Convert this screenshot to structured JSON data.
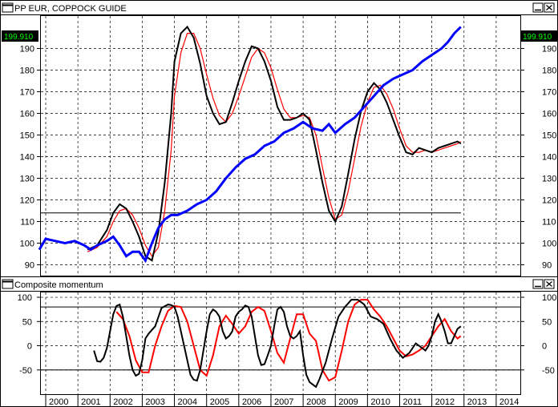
{
  "top_panel": {
    "title": "PP EUR, COPPOCK GUIDE",
    "last_value_label": "199.910"
  },
  "bottom_panel": {
    "title": "Composite momentum"
  },
  "colors": {
    "price": "#0000ff",
    "coppock": "#000000",
    "signal": "#ff0000",
    "momentum": "#000000",
    "momentum_signal": "#ff0000",
    "reference": "#000000",
    "badge_bg": "#000000",
    "badge_text": "#00ff00"
  },
  "chart_data": [
    {
      "type": "line",
      "title": "PP EUR, COPPOCK GUIDE",
      "xlim": [
        1999.85,
        2014.75
      ],
      "ylim": [
        85,
        205
      ],
      "x_ticks": [
        "2000",
        "2001",
        "2002",
        "2003",
        "2004",
        "2005",
        "2006",
        "2007",
        "2008",
        "2009",
        "2010",
        "2011",
        "2012",
        "2013",
        "2014"
      ],
      "y_ticks": [
        90,
        100,
        110,
        120,
        130,
        140,
        150,
        160,
        170,
        180,
        190
      ],
      "grid": true,
      "reference_line": 114,
      "series": [
        {
          "role": "price",
          "x": [
            1999.8,
            2000.0,
            2000.3,
            2000.6,
            2000.9,
            2001.2,
            2001.4,
            2001.6,
            2001.9,
            2002.1,
            2002.3,
            2002.5,
            2002.7,
            2002.9,
            2003.1,
            2003.3,
            2003.5,
            2003.7,
            2003.9,
            2004.1,
            2004.4,
            2004.7,
            2005.0,
            2005.3,
            2005.6,
            2005.9,
            2006.2,
            2006.5,
            2006.8,
            2007.1,
            2007.4,
            2007.7,
            2008.0,
            2008.3,
            2008.6,
            2008.8,
            2009.0,
            2009.3,
            2009.6,
            2009.9,
            2010.2,
            2010.5,
            2010.8,
            2011.1,
            2011.4,
            2011.7,
            2012.0,
            2012.3,
            2012.5,
            2012.7,
            2012.9
          ],
          "values": [
            97,
            102,
            101,
            100,
            101,
            99,
            97,
            99,
            101,
            103,
            99,
            94,
            96,
            96,
            92,
            100,
            107,
            111,
            113,
            113,
            115,
            118,
            120,
            124,
            130,
            135,
            139,
            141,
            145,
            147,
            151,
            153,
            156,
            153,
            152,
            155,
            151,
            155,
            158,
            163,
            168,
            173,
            176,
            178,
            180,
            184,
            187,
            190,
            193,
            197,
            200
          ]
        },
        {
          "role": "coppock",
          "x": [
            2001.3,
            2001.6,
            2001.9,
            2002.1,
            2002.3,
            2002.5,
            2002.7,
            2002.9,
            2003.1,
            2003.3,
            2003.5,
            2003.7,
            2003.9,
            2004.0,
            2004.2,
            2004.4,
            2004.6,
            2004.8,
            2005.0,
            2005.2,
            2005.4,
            2005.6,
            2005.8,
            2006.0,
            2006.2,
            2006.4,
            2006.6,
            2006.8,
            2007.0,
            2007.2,
            2007.4,
            2007.6,
            2007.8,
            2008.0,
            2008.2,
            2008.4,
            2008.6,
            2008.8,
            2009.0,
            2009.2,
            2009.4,
            2009.6,
            2009.8,
            2010.0,
            2010.2,
            2010.4,
            2010.6,
            2010.8,
            2011.0,
            2011.2,
            2011.4,
            2011.6,
            2011.8,
            2012.0,
            2012.2,
            2012.4,
            2012.6,
            2012.8,
            2012.9
          ],
          "values": [
            97,
            99,
            106,
            114,
            118,
            116,
            110,
            103,
            94,
            92,
            105,
            128,
            160,
            184,
            197,
            200,
            195,
            183,
            168,
            160,
            155,
            156,
            165,
            175,
            184,
            191,
            190,
            184,
            175,
            163,
            157,
            157,
            158,
            160,
            157,
            143,
            128,
            115,
            110,
            117,
            132,
            148,
            161,
            170,
            174,
            171,
            165,
            157,
            149,
            142,
            141,
            144,
            143,
            142,
            144,
            145,
            146,
            147,
            146
          ]
        },
        {
          "role": "signal",
          "x": [
            2001.3,
            2001.6,
            2001.9,
            2002.1,
            2002.3,
            2002.5,
            2002.7,
            2002.9,
            2003.1,
            2003.3,
            2003.5,
            2003.7,
            2003.9,
            2004.0,
            2004.2,
            2004.4,
            2004.6,
            2004.8,
            2005.0,
            2005.2,
            2005.4,
            2005.6,
            2005.8,
            2006.0,
            2006.2,
            2006.4,
            2006.6,
            2006.8,
            2007.0,
            2007.2,
            2007.4,
            2007.6,
            2007.8,
            2008.0,
            2008.2,
            2008.4,
            2008.6,
            2008.8,
            2009.0,
            2009.2,
            2009.4,
            2009.6,
            2009.8,
            2010.0,
            2010.2,
            2010.4,
            2010.6,
            2010.8,
            2011.0,
            2011.2,
            2011.4,
            2011.6,
            2011.8,
            2012.0,
            2012.2,
            2012.4,
            2012.6,
            2012.8,
            2012.9
          ],
          "values": [
            96,
            98,
            103,
            110,
            115,
            116,
            113,
            107,
            99,
            94,
            98,
            115,
            143,
            168,
            188,
            197,
            197,
            190,
            178,
            167,
            159,
            156,
            160,
            168,
            177,
            186,
            190,
            188,
            181,
            171,
            162,
            158,
            158,
            159,
            158,
            150,
            135,
            121,
            111,
            113,
            124,
            139,
            154,
            165,
            172,
            173,
            169,
            162,
            153,
            145,
            142,
            142,
            143,
            142,
            143,
            144,
            145,
            146,
            147
          ]
        }
      ]
    },
    {
      "type": "line",
      "title": "Composite momentum",
      "xlim": [
        1999.85,
        2014.75
      ],
      "ylim": [
        -100,
        110
      ],
      "y_ticks": [
        -50,
        0,
        50,
        100
      ],
      "x_ticks": [
        "2000",
        "2001",
        "2002",
        "2003",
        "2004",
        "2005",
        "2006",
        "2007",
        "2008",
        "2009",
        "2010",
        "2011",
        "2012",
        "2013",
        "2014"
      ],
      "grid": true,
      "reference_lines": [
        80,
        -50
      ],
      "series": [
        {
          "role": "momentum",
          "x": [
            2001.5,
            2001.6,
            2001.7,
            2001.8,
            2001.9,
            2002.0,
            2002.1,
            2002.2,
            2002.3,
            2002.4,
            2002.5,
            2002.6,
            2002.7,
            2002.8,
            2002.9,
            2003.0,
            2003.1,
            2003.2,
            2003.4,
            2003.6,
            2003.8,
            2003.9,
            2004.0,
            2004.1,
            2004.2,
            2004.3,
            2004.4,
            2004.5,
            2004.6,
            2004.7,
            2004.8,
            2004.9,
            2005.0,
            2005.1,
            2005.2,
            2005.3,
            2005.4,
            2005.5,
            2005.6,
            2005.7,
            2005.8,
            2005.9,
            2006.0,
            2006.1,
            2006.2,
            2006.3,
            2006.4,
            2006.5,
            2006.6,
            2006.7,
            2006.8,
            2006.9,
            2007.0,
            2007.1,
            2007.2,
            2007.3,
            2007.4,
            2007.5,
            2007.6,
            2007.7,
            2007.8,
            2007.9,
            2008.0,
            2008.1,
            2008.2,
            2008.3,
            2008.4,
            2008.5,
            2008.7,
            2008.9,
            2009.1,
            2009.3,
            2009.5,
            2009.7,
            2009.9,
            2010.1,
            2010.3,
            2010.5,
            2010.7,
            2010.9,
            2011.1,
            2011.2,
            2011.3,
            2011.4,
            2011.5,
            2011.6,
            2011.7,
            2011.8,
            2011.9,
            2012.0,
            2012.1,
            2012.2,
            2012.3,
            2012.4,
            2012.5,
            2012.6,
            2012.7,
            2012.8,
            2012.9
          ],
          "values": [
            -10,
            -32,
            -33,
            -25,
            -5,
            30,
            65,
            82,
            85,
            60,
            20,
            -20,
            -50,
            -62,
            -58,
            -30,
            15,
            25,
            40,
            78,
            85,
            84,
            80,
            60,
            30,
            0,
            -30,
            -60,
            -70,
            -72,
            -50,
            -10,
            30,
            65,
            75,
            70,
            60,
            30,
            15,
            20,
            30,
            60,
            70,
            75,
            83,
            80,
            60,
            20,
            -20,
            -40,
            -38,
            -20,
            0,
            40,
            75,
            80,
            70,
            40,
            20,
            15,
            20,
            30,
            -20,
            -60,
            -75,
            -80,
            -85,
            -70,
            -35,
            15,
            60,
            80,
            95,
            95,
            85,
            60,
            55,
            45,
            15,
            -10,
            -25,
            -20,
            -15,
            -5,
            5,
            0,
            -5,
            -10,
            0,
            20,
            50,
            65,
            50,
            30,
            5,
            5,
            20,
            35,
            40
          ]
        },
        {
          "role": "momentum_signal",
          "x": [
            2002.2,
            2002.4,
            2002.6,
            2002.8,
            2003.0,
            2003.2,
            2003.4,
            2003.6,
            2003.8,
            2004.0,
            2004.2,
            2004.4,
            2004.6,
            2004.8,
            2005.0,
            2005.2,
            2005.4,
            2005.6,
            2005.8,
            2006.0,
            2006.2,
            2006.4,
            2006.6,
            2006.8,
            2007.0,
            2007.2,
            2007.4,
            2007.6,
            2007.8,
            2008.0,
            2008.2,
            2008.4,
            2008.6,
            2008.8,
            2009.0,
            2009.2,
            2009.4,
            2009.6,
            2009.8,
            2010.0,
            2010.2,
            2010.4,
            2010.6,
            2010.8,
            2011.0,
            2011.2,
            2011.4,
            2011.6,
            2011.8,
            2012.0,
            2012.2,
            2012.4,
            2012.6,
            2012.8,
            2012.9
          ],
          "values": [
            70,
            55,
            20,
            -30,
            -55,
            -55,
            0,
            40,
            72,
            82,
            80,
            50,
            0,
            -50,
            -62,
            -20,
            40,
            62,
            45,
            25,
            40,
            70,
            80,
            72,
            30,
            -15,
            -35,
            15,
            65,
            65,
            25,
            10,
            -50,
            -72,
            -65,
            -10,
            50,
            85,
            95,
            95,
            75,
            60,
            40,
            15,
            -10,
            -22,
            -18,
            -10,
            0,
            20,
            40,
            55,
            30,
            15,
            20
          ]
        }
      ]
    }
  ]
}
